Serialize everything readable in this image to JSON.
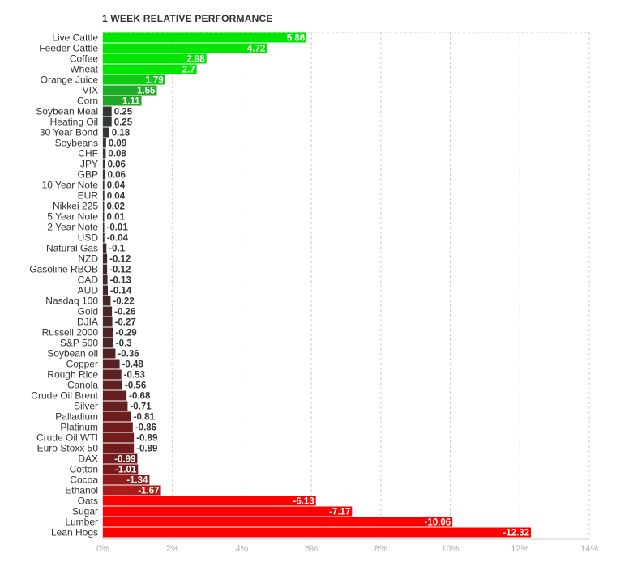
{
  "chart_data": {
    "type": "bar",
    "orientation": "horizontal",
    "title": "1 WEEK RELATIVE PERFORMANCE",
    "xlim": [
      0,
      14
    ],
    "x_ticks": [
      "0%",
      "2%",
      "4%",
      "6%",
      "8%",
      "10%",
      "12%",
      "14%"
    ],
    "grid": "vertical dashed",
    "categories": [
      "Live Cattle",
      "Feeder Cattle",
      "Coffee",
      "Wheat",
      "Orange Juice",
      "VIX",
      "Corn",
      "Soybean Meal",
      "Heating Oil",
      "30 Year Bond",
      "Soybeans",
      "CHF",
      "JPY",
      "GBP",
      "10 Year Note",
      "EUR",
      "Nikkei 225",
      "5 Year Note",
      "2 Year Note",
      "USD",
      "Natural Gas",
      "NZD",
      "Gasoline RBOB",
      "CAD",
      "AUD",
      "Nasdaq 100",
      "Gold",
      "DJIA",
      "Russell 2000",
      "S&P 500",
      "Soybean oil",
      "Copper",
      "Rough Rice",
      "Canola",
      "Crude Oil Brent",
      "Silver",
      "Palladium",
      "Platinum",
      "Crude Oil WTI",
      "Euro Stoxx 50",
      "DAX",
      "Cotton",
      "Cocoa",
      "Ethanol",
      "Oats",
      "Sugar",
      "Lumber",
      "Lean Hogs"
    ],
    "values": [
      5.86,
      4.72,
      2.98,
      2.7,
      1.79,
      1.55,
      1.11,
      0.25,
      0.25,
      0.18,
      0.09,
      0.08,
      0.06,
      0.06,
      0.04,
      0.04,
      0.02,
      0.01,
      -0.01,
      -0.04,
      -0.1,
      -0.12,
      -0.12,
      -0.13,
      -0.14,
      -0.22,
      -0.26,
      -0.27,
      -0.29,
      -0.3,
      -0.36,
      -0.48,
      -0.53,
      -0.56,
      -0.68,
      -0.71,
      -0.81,
      -0.86,
      -0.89,
      -0.89,
      -0.99,
      -1.01,
      -1.34,
      -1.67,
      -6.13,
      -7.17,
      -10.06,
      -12.32
    ],
    "value_labels": [
      "5.86",
      "4.72",
      "2.98",
      "2.7",
      "1.79",
      "1.55",
      "1.11",
      "0.25",
      "0.25",
      "0.18",
      "0.09",
      "0.08",
      "0.06",
      "0.06",
      "0.04",
      "0.04",
      "0.02",
      "0.01",
      "-0.01",
      "-0.04",
      "-0.1",
      "-0.12",
      "-0.12",
      "-0.13",
      "-0.14",
      "-0.22",
      "-0.26",
      "-0.27",
      "-0.29",
      "-0.3",
      "-0.36",
      "-0.48",
      "-0.53",
      "-0.56",
      "-0.68",
      "-0.71",
      "-0.81",
      "-0.86",
      "-0.89",
      "-0.89",
      "-0.99",
      "-1.01",
      "-1.34",
      "-1.67",
      "-6.13",
      "-7.17",
      "-10.06",
      "-12.32"
    ],
    "colors": {
      "positive_strong": "#00e600",
      "positive_mid": "#22a62a",
      "near_zero": "#333333",
      "negative_mid": "#8b1a1a",
      "negative_strong": "#ff0000",
      "grid": "#cccccc",
      "tick_text": "#b0b0b0"
    }
  }
}
